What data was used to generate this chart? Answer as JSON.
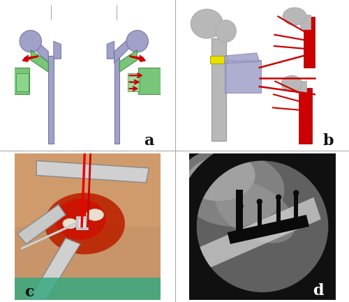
{
  "figure_size": [
    5.0,
    4.33
  ],
  "dpi": 100,
  "background_color": "#ffffff",
  "label_a": "a",
  "label_b": "b",
  "label_c": "c",
  "label_d": "d",
  "label_fontsize": 14,
  "panel_a_bg": "#e8e8e8",
  "panel_b_bg": "#1a4080",
  "bone_lavender": "#a0a0c8",
  "bone_gray": "#b8b8b8",
  "template_green": "#6abf6a",
  "template_green_dark": "#3d8a3d",
  "template_green_light": "#90d890",
  "wire_red": "#cc0000",
  "yellow": "#e8e000",
  "separator": "#aaaaaa",
  "skin_color": "#c8956a",
  "wound_red": "#aa2200",
  "steel_color": "#c0c0c0",
  "teal_drape": "#40a890",
  "xray_bg": "#101010",
  "xray_mid": "#888888",
  "xray_light": "#cccccc",
  "xray_bright": "#e8e8e8",
  "implant_black": "#0a0a0a"
}
